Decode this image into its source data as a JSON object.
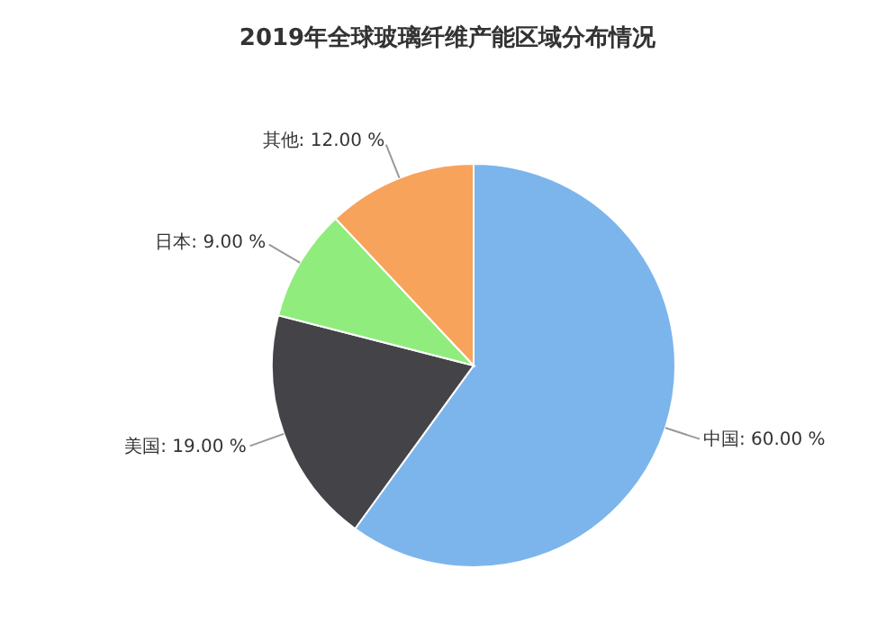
{
  "chart_data": {
    "type": "pie",
    "title": "2019年全球玻璃纤维产能区域分布情况",
    "categories": [
      "中国",
      "美国",
      "日本",
      "其他"
    ],
    "values": [
      60,
      19,
      9,
      12
    ],
    "value_labels": [
      "60.00 %",
      "19.00 %",
      "9.00 %",
      "12.00 %"
    ],
    "colors": [
      "#7cb5ec",
      "#434348",
      "#90ed7d",
      "#f7a35c"
    ],
    "legend": false
  }
}
